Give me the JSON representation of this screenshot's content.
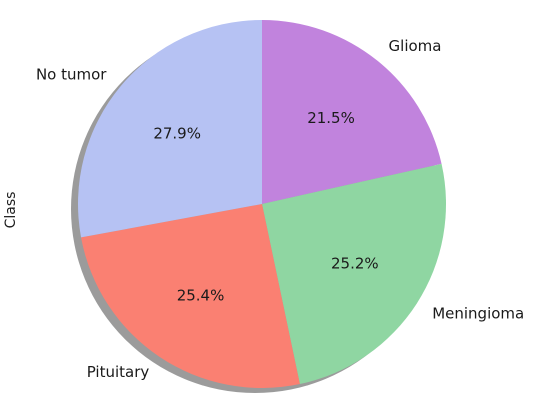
{
  "chart_data": {
    "type": "pie",
    "ylabel": "Class",
    "labels": [
      "Glioma",
      "Meningioma",
      "Pituitary",
      "No tumor"
    ],
    "values": [
      21.5,
      25.2,
      25.4,
      27.9
    ],
    "value_labels": [
      "21.5%",
      "25.2%",
      "25.4%",
      "27.9%"
    ],
    "colors": [
      "#c183dd",
      "#8fd6a2",
      "#fa8072",
      "#b6c2f3"
    ],
    "start_angle": "90 (top), clockwise",
    "shadow": true
  }
}
